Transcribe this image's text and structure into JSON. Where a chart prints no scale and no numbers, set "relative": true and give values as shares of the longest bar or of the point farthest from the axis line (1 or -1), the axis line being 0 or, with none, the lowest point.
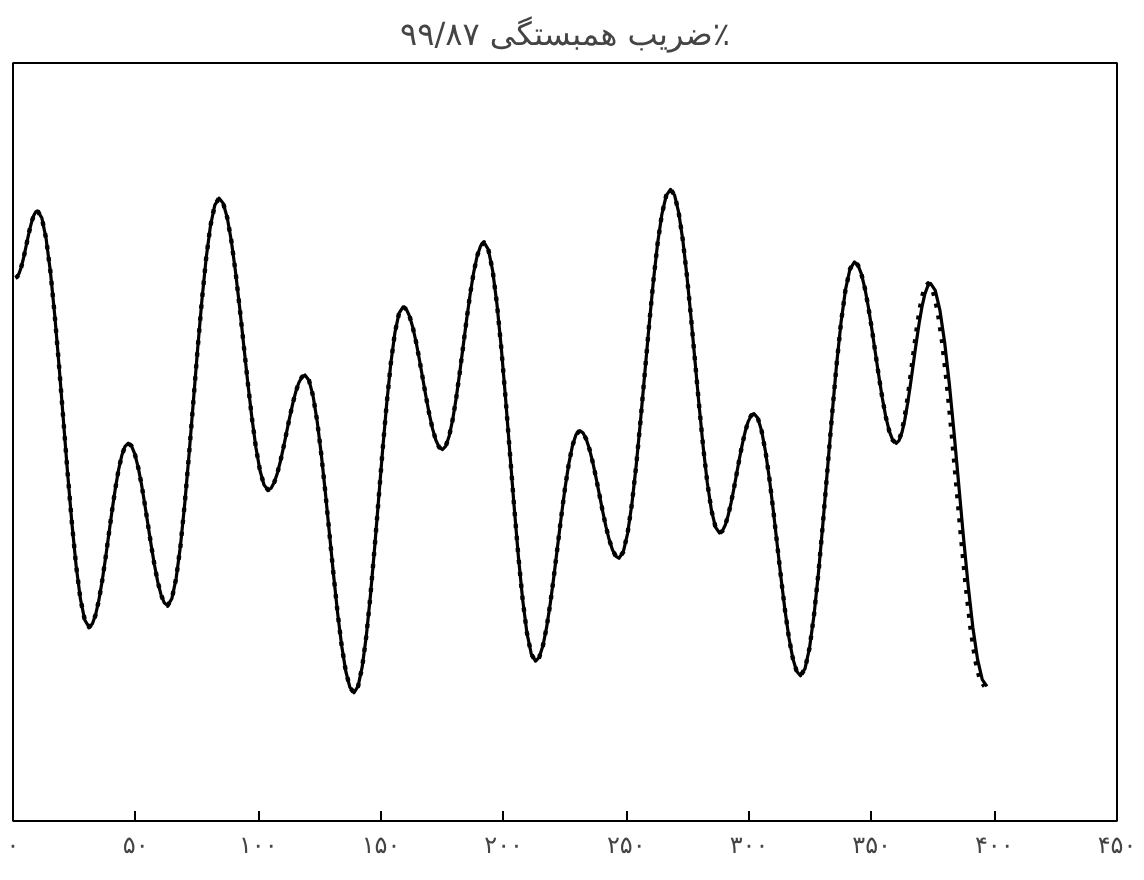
{
  "chart_data": {
    "type": "line",
    "title": "ضریب همبستگی ۹۹/۸۷٪",
    "relative": true,
    "xlim": [
      0,
      450
    ],
    "xticks": [
      {
        "value": 0,
        "label": "۰"
      },
      {
        "value": 50,
        "label": "۵۰"
      },
      {
        "value": 100,
        "label": "۱۰۰"
      },
      {
        "value": 150,
        "label": "۱۵۰"
      },
      {
        "value": 200,
        "label": "۲۰۰"
      },
      {
        "value": 250,
        "label": "۲۵۰"
      },
      {
        "value": 300,
        "label": "۳۰۰"
      },
      {
        "value": 350,
        "label": "۳۵۰"
      },
      {
        "value": 400,
        "label": "۴۰۰"
      },
      {
        "value": 450,
        "label": "۴۵۰"
      }
    ],
    "tick_labels": "x",
    "grid": false,
    "series": [
      {
        "color": "#000000",
        "line_style": "solid",
        "x": [
          1,
          10,
          31,
          47,
          63,
          84,
          104,
          119,
          139,
          159,
          175,
          192,
          213,
          231,
          247,
          268,
          288,
          302,
          321,
          343,
          360,
          374,
          397
        ],
        "values": [
          0.86,
          0.966,
          0.307,
          0.598,
          0.341,
          0.986,
          0.524,
          0.706,
          0.203,
          0.814,
          0.588,
          0.916,
          0.253,
          0.618,
          0.416,
          1.0,
          0.456,
          0.645,
          0.23,
          0.885,
          0.598,
          0.851,
          0.213
        ]
      },
      {
        "color": "#000000",
        "line_style": "dotted",
        "x": [
          1,
          10,
          31,
          47,
          63,
          84,
          104,
          119,
          139,
          159,
          175,
          192,
          213,
          231,
          247,
          268,
          288,
          302,
          321,
          343,
          360,
          373,
          396
        ],
        "values": [
          0.86,
          0.966,
          0.307,
          0.598,
          0.341,
          0.986,
          0.524,
          0.706,
          0.203,
          0.814,
          0.588,
          0.916,
          0.253,
          0.618,
          0.416,
          1.0,
          0.456,
          0.645,
          0.23,
          0.885,
          0.598,
          0.851,
          0.213
        ]
      }
    ]
  }
}
